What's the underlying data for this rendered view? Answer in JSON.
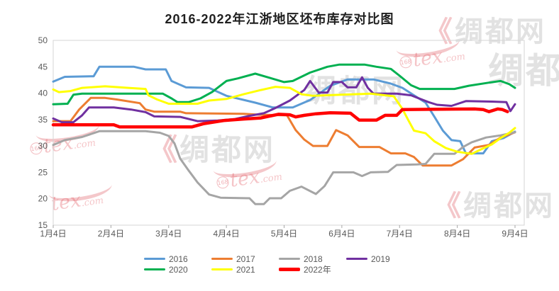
{
  "title": "2016-2022年江浙地区坯布库存对比图",
  "watermarks": {
    "tex": "tex",
    "dotcom": ".com",
    "badge": "168",
    "site": "绸都网",
    "quote": "《"
  },
  "chart_data": {
    "type": "line",
    "title": "2016-2022年江浙地区坯布库存对比图",
    "xlabel": "",
    "ylabel": "",
    "grid": false,
    "legend_position": "bottom",
    "axis_color": "#D4D4D4",
    "tick_color": "#A6A6A6",
    "label_color": "#595959",
    "x_axis": {
      "tick_labels": [
        "1月4日",
        "2月4日",
        "3月4日",
        "4月4日",
        "5月4日",
        "6月4日",
        "7月4日",
        "8月4日",
        "9月4日"
      ]
    },
    "y_axis": {
      "min": 15,
      "max": 50,
      "step": 5,
      "tick_labels": [
        "15",
        "20",
        "25",
        "30",
        "35",
        "40",
        "45",
        "50"
      ]
    },
    "series": [
      {
        "name": "2016",
        "color": "#5B9BD5",
        "width": 3,
        "points": [
          [
            1,
            42.2
          ],
          [
            1.2,
            43.1
          ],
          [
            1.7,
            43.2
          ],
          [
            1.8,
            45
          ],
          [
            2.4,
            45
          ],
          [
            2.6,
            44.5
          ],
          [
            2.95,
            44.5
          ],
          [
            3.05,
            42.3
          ],
          [
            3.3,
            41.1
          ],
          [
            3.7,
            41
          ],
          [
            4,
            39.5
          ],
          [
            4.5,
            38.2
          ],
          [
            4.8,
            37.3
          ],
          [
            5.15,
            37.3
          ],
          [
            5.45,
            38.7
          ],
          [
            5.8,
            41.4
          ],
          [
            6.1,
            42.6
          ],
          [
            6.55,
            42.6
          ],
          [
            6.85,
            41.8
          ],
          [
            7.05,
            41
          ],
          [
            7.25,
            39.6
          ],
          [
            7.45,
            38.2
          ],
          [
            7.6,
            35.6
          ],
          [
            7.75,
            32.9
          ],
          [
            7.9,
            31.1
          ],
          [
            8.05,
            30.9
          ],
          [
            8.15,
            28.6
          ],
          [
            8.45,
            28.6
          ],
          [
            8.6,
            30.9
          ],
          [
            8.8,
            31.5
          ],
          [
            9,
            32.7
          ]
        ]
      },
      {
        "name": "2017",
        "color": "#ED7D31",
        "width": 3,
        "points": [
          [
            1,
            34.7
          ],
          [
            1.3,
            34.7
          ],
          [
            1.45,
            36.9
          ],
          [
            1.65,
            39.1
          ],
          [
            1.9,
            39.1
          ],
          [
            2.1,
            38.8
          ],
          [
            2.5,
            38.1
          ],
          [
            2.6,
            36.9
          ],
          [
            2.75,
            36.5
          ],
          [
            3.2,
            36.5
          ],
          [
            3.3,
            36.2
          ],
          [
            4.3,
            36.1
          ],
          [
            4.6,
            35.9
          ],
          [
            5.05,
            35.8
          ],
          [
            5.2,
            33
          ],
          [
            5.35,
            31.2
          ],
          [
            5.5,
            30
          ],
          [
            5.75,
            30
          ],
          [
            5.9,
            33
          ],
          [
            6.1,
            32
          ],
          [
            6.3,
            29.8
          ],
          [
            6.65,
            29.8
          ],
          [
            6.85,
            28.6
          ],
          [
            7.1,
            28.6
          ],
          [
            7.25,
            27.9
          ],
          [
            7.4,
            26.3
          ],
          [
            7.9,
            26.3
          ],
          [
            8.1,
            27.5
          ],
          [
            8.3,
            29.7
          ],
          [
            8.55,
            30.2
          ],
          [
            8.75,
            31.6
          ],
          [
            9,
            32.6
          ]
        ]
      },
      {
        "name": "2018",
        "color": "#A5A5A5",
        "width": 3,
        "points": [
          [
            1,
            30.2
          ],
          [
            1.2,
            31.1
          ],
          [
            1.5,
            31.7
          ],
          [
            1.8,
            32.8
          ],
          [
            2.6,
            32.8
          ],
          [
            2.85,
            32.5
          ],
          [
            3,
            31.9
          ],
          [
            3.1,
            30.5
          ],
          [
            3.2,
            27.6
          ],
          [
            3.35,
            25.3
          ],
          [
            3.5,
            23.1
          ],
          [
            3.7,
            20.8
          ],
          [
            3.9,
            20.2
          ],
          [
            4.4,
            20.1
          ],
          [
            4.5,
            19
          ],
          [
            4.65,
            19
          ],
          [
            4.75,
            20.1
          ],
          [
            4.95,
            20.1
          ],
          [
            5.1,
            21.5
          ],
          [
            5.3,
            22.3
          ],
          [
            5.55,
            20.9
          ],
          [
            5.7,
            22.4
          ],
          [
            5.85,
            25
          ],
          [
            6.2,
            25
          ],
          [
            6.35,
            24.3
          ],
          [
            6.5,
            25
          ],
          [
            6.8,
            25.1
          ],
          [
            6.95,
            26.4
          ],
          [
            7.3,
            26.5
          ],
          [
            7.45,
            26.6
          ],
          [
            7.6,
            28.5
          ],
          [
            7.95,
            28.5
          ],
          [
            8.1,
            29.8
          ],
          [
            8.25,
            30.7
          ],
          [
            8.5,
            31.6
          ],
          [
            8.75,
            32
          ],
          [
            9,
            32.6
          ]
        ]
      },
      {
        "name": "2019",
        "color": "#7030A0",
        "width": 3,
        "points": [
          [
            1,
            35.2
          ],
          [
            1.15,
            34.5
          ],
          [
            1.35,
            34.5
          ],
          [
            1.5,
            35.8
          ],
          [
            1.62,
            37.3
          ],
          [
            2.05,
            37.3
          ],
          [
            2.35,
            36.9
          ],
          [
            2.6,
            36.4
          ],
          [
            2.75,
            35.6
          ],
          [
            3.2,
            35.5
          ],
          [
            3.5,
            34.7
          ],
          [
            3.85,
            34.8
          ],
          [
            4.15,
            35.1
          ],
          [
            4.4,
            35.7
          ],
          [
            4.65,
            36.2
          ],
          [
            4.85,
            37.2
          ],
          [
            5.1,
            38.6
          ],
          [
            5.35,
            40.6
          ],
          [
            5.45,
            42.3
          ],
          [
            5.6,
            40.1
          ],
          [
            5.75,
            40.1
          ],
          [
            5.85,
            42.1
          ],
          [
            6,
            42.1
          ],
          [
            6.1,
            41.1
          ],
          [
            6.25,
            41.1
          ],
          [
            6.35,
            43
          ],
          [
            6.45,
            41
          ],
          [
            6.55,
            39.9
          ],
          [
            6.95,
            39.9
          ],
          [
            7.2,
            39.6
          ],
          [
            7.5,
            38.3
          ],
          [
            7.65,
            37.8
          ],
          [
            7.9,
            37.6
          ],
          [
            8.15,
            38.5
          ],
          [
            8.6,
            38.4
          ],
          [
            8.85,
            38.3
          ],
          [
            8.92,
            36.6
          ],
          [
            9,
            37.9
          ]
        ]
      },
      {
        "name": "2020",
        "color": "#00B050",
        "width": 3,
        "points": [
          [
            1,
            37.9
          ],
          [
            1.25,
            38
          ],
          [
            1.35,
            39.7
          ],
          [
            1.5,
            39.9
          ],
          [
            2.9,
            39.9
          ],
          [
            3.05,
            39
          ],
          [
            3.15,
            38.3
          ],
          [
            3.35,
            38.3
          ],
          [
            3.55,
            39
          ],
          [
            3.75,
            40.2
          ],
          [
            4,
            42.3
          ],
          [
            4.2,
            42.8
          ],
          [
            4.5,
            43.7
          ],
          [
            4.75,
            42.9
          ],
          [
            5,
            42.1
          ],
          [
            5.15,
            42.3
          ],
          [
            5.45,
            43.9
          ],
          [
            5.75,
            45
          ],
          [
            5.95,
            45.4
          ],
          [
            6.4,
            45.4
          ],
          [
            6.6,
            45
          ],
          [
            6.85,
            44.6
          ],
          [
            7,
            43.3
          ],
          [
            7.2,
            41.5
          ],
          [
            7.35,
            40.8
          ],
          [
            7.95,
            40.8
          ],
          [
            8.2,
            41.4
          ],
          [
            8.55,
            42
          ],
          [
            8.75,
            42.3
          ],
          [
            8.9,
            41.7
          ],
          [
            9,
            41
          ]
        ]
      },
      {
        "name": "2021",
        "color": "#FFFF00",
        "width": 3,
        "points": [
          [
            1,
            40.7
          ],
          [
            1.1,
            40.2
          ],
          [
            1.3,
            40.4
          ],
          [
            1.5,
            41
          ],
          [
            1.9,
            41.3
          ],
          [
            2.3,
            41
          ],
          [
            2.6,
            40.8
          ],
          [
            2.65,
            39.6
          ],
          [
            2.8,
            38.8
          ],
          [
            3,
            38
          ],
          [
            3.5,
            38
          ],
          [
            3.7,
            38.6
          ],
          [
            4,
            38.9
          ],
          [
            4.3,
            39.8
          ],
          [
            4.6,
            40.6
          ],
          [
            4.85,
            41.2
          ],
          [
            5.1,
            41
          ],
          [
            5.3,
            39.8
          ],
          [
            5.5,
            39.5
          ],
          [
            6,
            39.7
          ],
          [
            6.5,
            39.9
          ],
          [
            6.9,
            39.4
          ],
          [
            7.05,
            37
          ],
          [
            7.15,
            34.9
          ],
          [
            7.25,
            32.9
          ],
          [
            7.45,
            32.4
          ],
          [
            7.6,
            30.9
          ],
          [
            7.8,
            29.6
          ],
          [
            8,
            28.9
          ],
          [
            8.25,
            28.5
          ],
          [
            8.4,
            29.3
          ],
          [
            8.6,
            30.3
          ],
          [
            8.75,
            31.5
          ],
          [
            8.9,
            32.5
          ],
          [
            9,
            33.4
          ]
        ]
      },
      {
        "name": "2022年",
        "color": "#FF0000",
        "width": 4.5,
        "points": [
          [
            1,
            34
          ],
          [
            2.05,
            34
          ],
          [
            2.15,
            33.6
          ],
          [
            3.4,
            33.6
          ],
          [
            3.6,
            34.2
          ],
          [
            3.95,
            34.8
          ],
          [
            4.3,
            35.1
          ],
          [
            4.6,
            35.3
          ],
          [
            4.9,
            36
          ],
          [
            5.1,
            35.9
          ],
          [
            5.2,
            35.5
          ],
          [
            5.35,
            35.8
          ],
          [
            5.55,
            36.1
          ],
          [
            5.8,
            36.3
          ],
          [
            6.15,
            36.2
          ],
          [
            6.3,
            34.9
          ],
          [
            6.6,
            34.9
          ],
          [
            6.75,
            35.8
          ],
          [
            6.95,
            35.8
          ],
          [
            7.05,
            36.9
          ],
          [
            8.3,
            37
          ],
          [
            8.45,
            36.9
          ],
          [
            8.55,
            36.5
          ],
          [
            8.7,
            37
          ],
          [
            8.78,
            36.9
          ],
          [
            8.87,
            36.5
          ]
        ]
      }
    ]
  }
}
